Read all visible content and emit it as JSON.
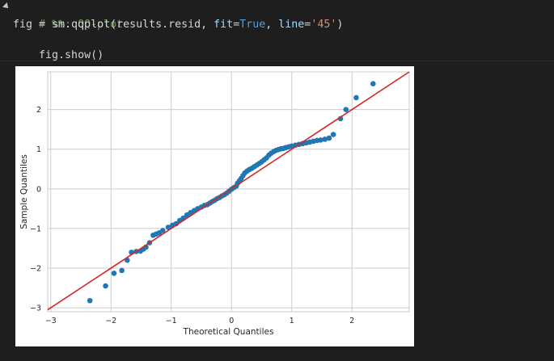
{
  "cell": {
    "line1": {
      "comment": "# %%: QQ-plot"
    },
    "line2": {
      "a": "fig = sm.qqplot(results.resid, ",
      "p1": "fit",
      "eq1": "=",
      "v1": "True",
      "c": ", ",
      "p2": "line",
      "eq2": "=",
      "v2": "'45'",
      "end": ")"
    },
    "line3": {
      "text": "fig.show()"
    }
  },
  "chart_data": {
    "type": "scatter",
    "title": "",
    "xlabel": "Theoretical Quantiles",
    "ylabel": "Sample Quantiles",
    "xlim": [
      -3.05,
      2.95
    ],
    "ylim": [
      -3.1,
      2.95
    ],
    "xticks": [
      "−3",
      "−2",
      "−1",
      "0",
      "1",
      "2"
    ],
    "xtick_values": [
      -3,
      -2,
      -1,
      0,
      1,
      2
    ],
    "yticks": [
      "−3",
      "−2",
      "−1",
      "0",
      "1",
      "2"
    ],
    "ytick_values": [
      -3,
      -2,
      -1,
      0,
      1,
      2
    ],
    "grid": true,
    "point_color": "#1f77b4",
    "line_color": "#d62728",
    "reference_line": "45-degree",
    "points": [
      [
        -2.35,
        -2.82
      ],
      [
        -2.09,
        -2.45
      ],
      [
        -1.95,
        -2.13
      ],
      [
        -1.82,
        -2.06
      ],
      [
        -1.73,
        -1.8
      ],
      [
        -1.66,
        -1.6
      ],
      [
        -1.58,
        -1.58
      ],
      [
        -1.51,
        -1.57
      ],
      [
        -1.46,
        -1.52
      ],
      [
        -1.42,
        -1.47
      ],
      [
        -1.36,
        -1.36
      ],
      [
        -1.3,
        -1.17
      ],
      [
        -1.25,
        -1.14
      ],
      [
        -1.2,
        -1.11
      ],
      [
        -1.14,
        -1.05
      ],
      [
        -1.05,
        -0.97
      ],
      [
        -0.98,
        -0.92
      ],
      [
        -0.92,
        -0.88
      ],
      [
        -0.86,
        -0.8
      ],
      [
        -0.8,
        -0.74
      ],
      [
        -0.74,
        -0.66
      ],
      [
        -0.68,
        -0.6
      ],
      [
        -0.62,
        -0.55
      ],
      [
        -0.56,
        -0.5
      ],
      [
        -0.5,
        -0.46
      ],
      [
        -0.45,
        -0.42
      ],
      [
        -0.4,
        -0.4
      ],
      [
        -0.36,
        -0.36
      ],
      [
        -0.32,
        -0.32
      ],
      [
        -0.28,
        -0.29
      ],
      [
        -0.24,
        -0.25
      ],
      [
        -0.2,
        -0.22
      ],
      [
        -0.16,
        -0.18
      ],
      [
        -0.12,
        -0.15
      ],
      [
        -0.08,
        -0.11
      ],
      [
        -0.04,
        -0.06
      ],
      [
        0.0,
        -0.01
      ],
      [
        0.04,
        0.03
      ],
      [
        0.08,
        0.07
      ],
      [
        0.1,
        0.14
      ],
      [
        0.13,
        0.2
      ],
      [
        0.16,
        0.26
      ],
      [
        0.19,
        0.33
      ],
      [
        0.22,
        0.4
      ],
      [
        0.26,
        0.45
      ],
      [
        0.3,
        0.49
      ],
      [
        0.34,
        0.52
      ],
      [
        0.38,
        0.56
      ],
      [
        0.42,
        0.6
      ],
      [
        0.46,
        0.64
      ],
      [
        0.5,
        0.68
      ],
      [
        0.54,
        0.73
      ],
      [
        0.58,
        0.78
      ],
      [
        0.62,
        0.85
      ],
      [
        0.66,
        0.9
      ],
      [
        0.7,
        0.94
      ],
      [
        0.74,
        0.97
      ],
      [
        0.78,
        0.99
      ],
      [
        0.82,
        1.01
      ],
      [
        0.86,
        1.02
      ],
      [
        0.9,
        1.04
      ],
      [
        0.95,
        1.06
      ],
      [
        1.0,
        1.08
      ],
      [
        1.06,
        1.1
      ],
      [
        1.12,
        1.12
      ],
      [
        1.18,
        1.14
      ],
      [
        1.24,
        1.16
      ],
      [
        1.3,
        1.18
      ],
      [
        1.36,
        1.2
      ],
      [
        1.42,
        1.22
      ],
      [
        1.48,
        1.23
      ],
      [
        1.55,
        1.25
      ],
      [
        1.62,
        1.28
      ],
      [
        1.69,
        1.37
      ],
      [
        1.81,
        1.77
      ],
      [
        1.9,
        2.0
      ],
      [
        2.07,
        2.3
      ],
      [
        2.35,
        2.65
      ]
    ]
  }
}
